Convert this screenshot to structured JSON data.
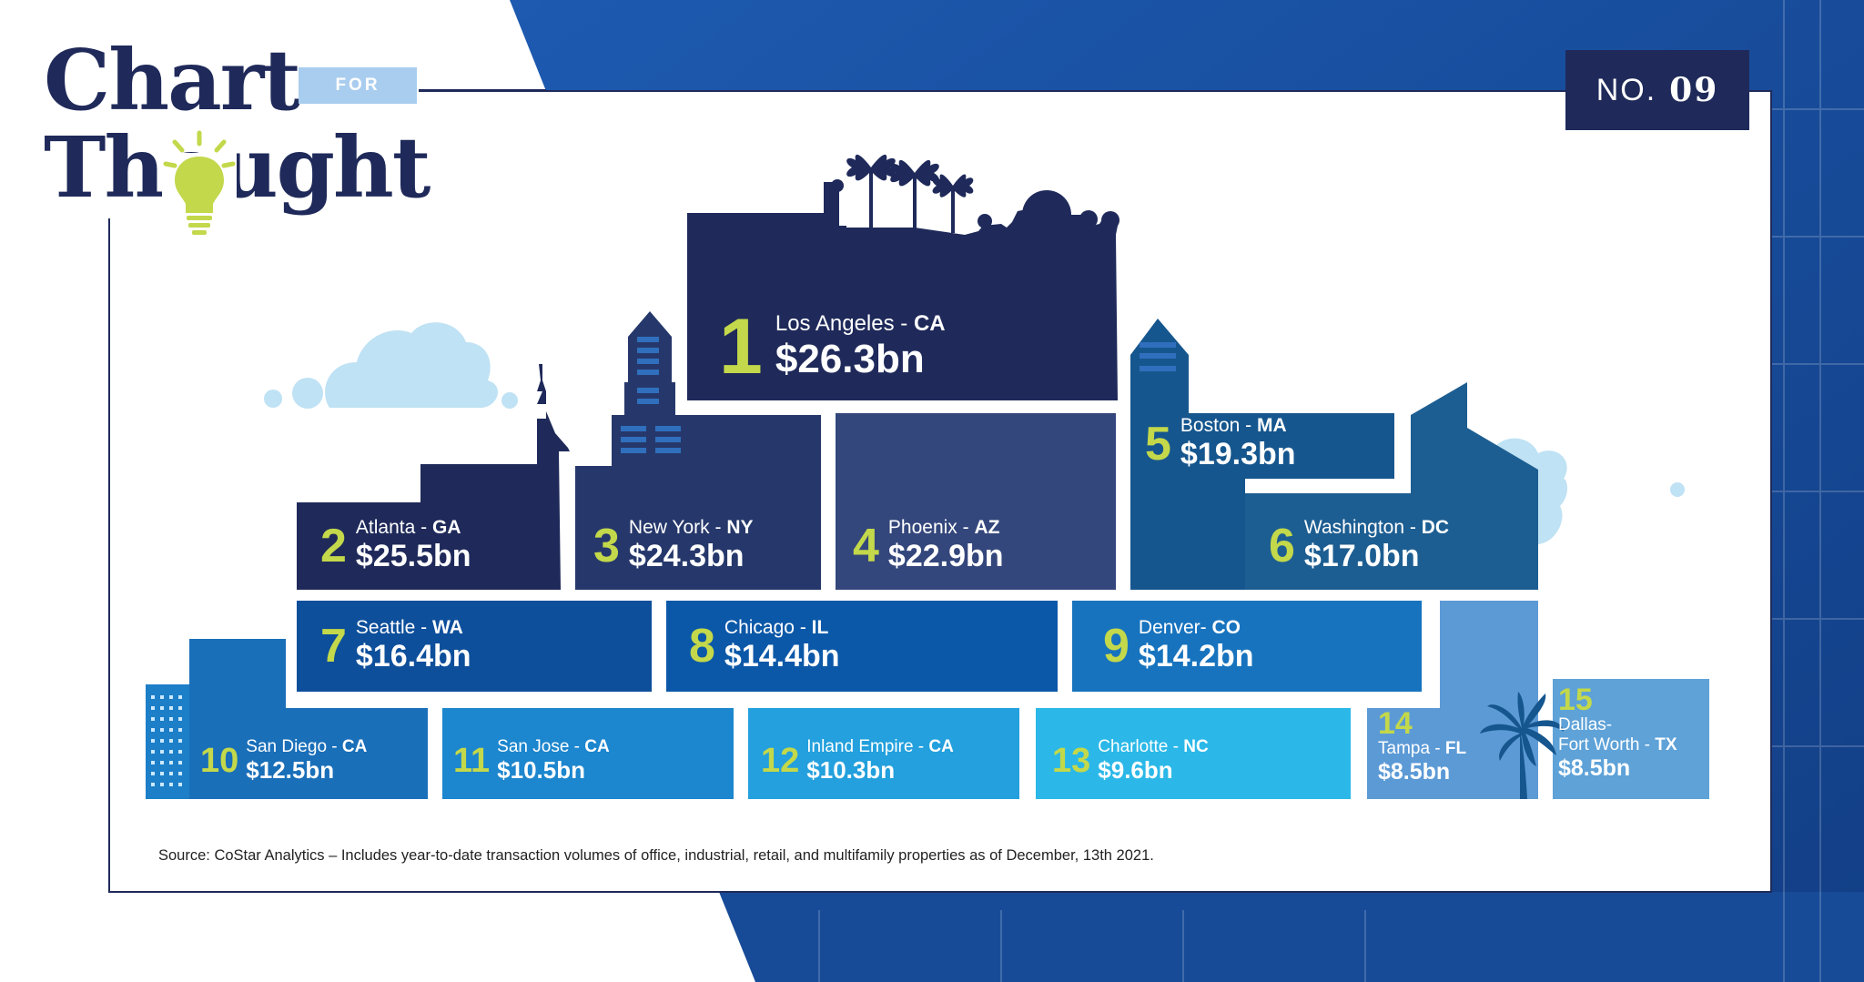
{
  "brand": {
    "word1": "Chart",
    "for_label": "FOR",
    "word2": "Thought"
  },
  "issue": {
    "prefix": "NO.",
    "number": "09"
  },
  "source_note": "Source: CoStar Analytics – Includes year-to-date transaction volumes of office, industrial, retail, and multifamily properties as of December, 13th 2021.",
  "colors": {
    "navy": "#1f2a5a",
    "accent_number": "#c3d84a",
    "background_blue": "#1b4f9f",
    "cloud": "#bfe2f4"
  },
  "chart_data": {
    "type": "bar",
    "unit": "bn",
    "entries": [
      {
        "rank": "1",
        "city": "Los Angeles",
        "state": "CA",
        "sep": " - ",
        "value": 26.3,
        "label": "$26.3bn"
      },
      {
        "rank": "2",
        "city": "Atlanta",
        "state": "GA",
        "sep": " - ",
        "value": 25.5,
        "label": "$25.5bn"
      },
      {
        "rank": "3",
        "city": "New York",
        "state": "NY",
        "sep": " - ",
        "value": 24.3,
        "label": "$24.3bn"
      },
      {
        "rank": "4",
        "city": "Phoenix",
        "state": "AZ",
        "sep": " - ",
        "value": 22.9,
        "label": "$22.9bn"
      },
      {
        "rank": "5",
        "city": "Boston",
        "state": "MA",
        "sep": " - ",
        "value": 19.3,
        "label": "$19.3bn"
      },
      {
        "rank": "6",
        "city": "Washington",
        "state": "DC",
        "sep": " - ",
        "value": 17.0,
        "label": "$17.0bn"
      },
      {
        "rank": "7",
        "city": "Seattle",
        "state": "WA",
        "sep": " - ",
        "value": 16.4,
        "label": "$16.4bn"
      },
      {
        "rank": "8",
        "city": "Chicago",
        "state": "IL",
        "sep": " - ",
        "value": 14.4,
        "label": "$14.4bn"
      },
      {
        "rank": "9",
        "city": "Denver",
        "state": "CO",
        "sep": "- ",
        "value": 14.2,
        "label": "$14.2bn"
      },
      {
        "rank": "10",
        "city": "San Diego",
        "state": "CA",
        "sep": " - ",
        "value": 12.5,
        "label": "$12.5bn"
      },
      {
        "rank": "11",
        "city": "San Jose",
        "state": "CA",
        "sep": " - ",
        "value": 10.5,
        "label": "$10.5bn"
      },
      {
        "rank": "12",
        "city": "Inland Empire",
        "state": "CA",
        "sep": " - ",
        "value": 10.3,
        "label": "$10.3bn"
      },
      {
        "rank": "13",
        "city": "Charlotte",
        "state": "NC",
        "sep": " - ",
        "value": 9.6,
        "label": "$9.6bn"
      },
      {
        "rank": "14",
        "city": "Tampa",
        "state": "FL",
        "sep": " - ",
        "value": 8.5,
        "label": "$8.5bn"
      },
      {
        "rank": "15",
        "city": "Dallas-",
        "city_line2": "Fort Worth",
        "state": "TX",
        "sep": " - ",
        "value": 8.5,
        "label": "$8.5bn"
      }
    ]
  }
}
